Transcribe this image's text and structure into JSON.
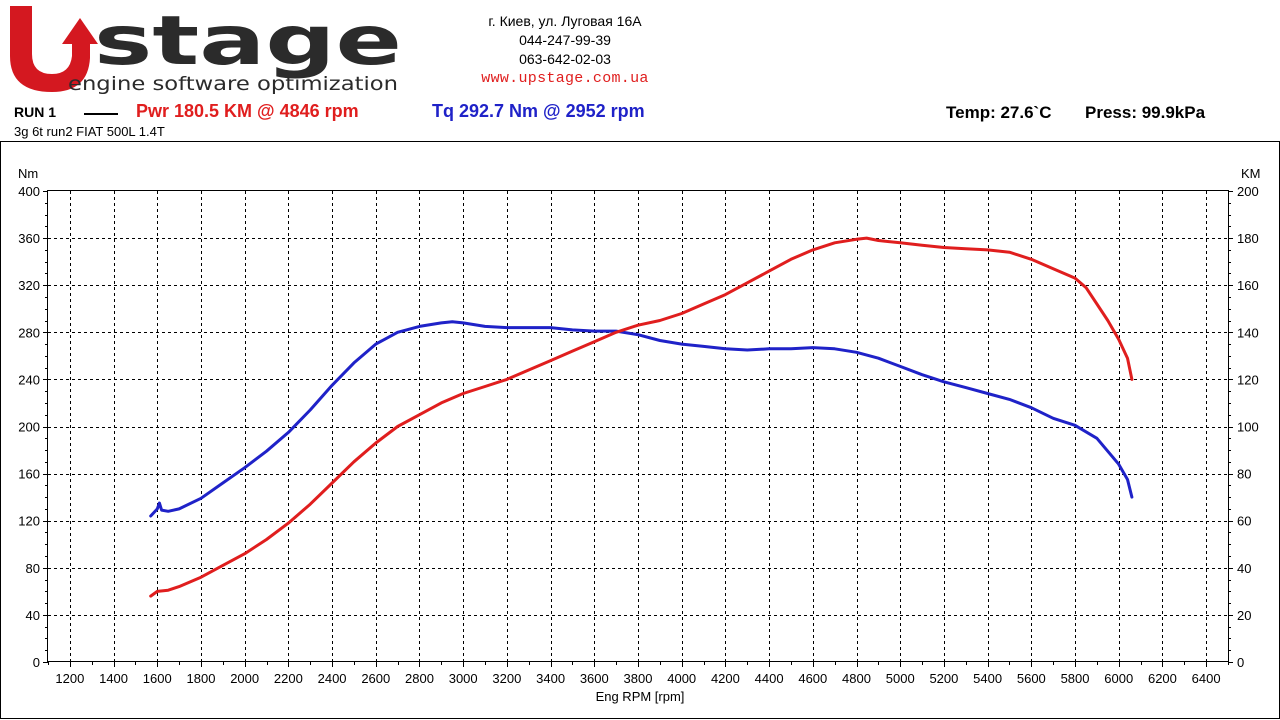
{
  "header": {
    "logo_text": "stage",
    "logo_letter": "U",
    "logo_tagline": "engine software optimization",
    "address": "г. Киев, ул. Луговая 16А",
    "phone1": "044-247-99-39",
    "phone2": "063-642-02-03",
    "website": "www.upstage.com.ua"
  },
  "run": {
    "label": "RUN 1",
    "power_summary": "Pwr  180.5 KM @ 4846 rpm",
    "torque_summary": "Tq 292.7 Nm @ 2952 rpm",
    "temp": "Temp: 27.6`C",
    "press": "Press: 99.9kPa",
    "description": "3g 6t run2 FIAT 500L 1.4T"
  },
  "colors": {
    "power": "#e01e1e",
    "torque": "#1f22c8",
    "logo_red": "#d41820",
    "logo_dark": "#2b2b2b"
  },
  "chart_data": {
    "type": "line",
    "xlabel": "Eng RPM [rpm]",
    "ylabel_left": "Nm",
    "ylabel_right": "KM",
    "xlim": [
      1100,
      6500
    ],
    "ylim_left": [
      0,
      400
    ],
    "ylim_right": [
      0,
      200
    ],
    "x_ticks": [
      1200,
      1400,
      1600,
      1800,
      2000,
      2200,
      2400,
      2600,
      2800,
      3000,
      3200,
      3400,
      3600,
      3800,
      4000,
      4200,
      4400,
      4600,
      4800,
      5000,
      5200,
      5400,
      5600,
      5800,
      6000,
      6200,
      6400
    ],
    "y_ticks_left": [
      0,
      40,
      80,
      120,
      160,
      200,
      240,
      280,
      320,
      360,
      400
    ],
    "y_ticks_right": [
      0,
      20,
      40,
      60,
      80,
      100,
      120,
      140,
      160,
      180,
      200
    ],
    "grid": true,
    "series": [
      {
        "name": "Tq",
        "axis": "left",
        "points": [
          [
            1570,
            124
          ],
          [
            1600,
            130
          ],
          [
            1610,
            135
          ],
          [
            1620,
            129
          ],
          [
            1650,
            128
          ],
          [
            1700,
            130
          ],
          [
            1800,
            139
          ],
          [
            1900,
            152
          ],
          [
            2000,
            165
          ],
          [
            2100,
            179
          ],
          [
            2200,
            195
          ],
          [
            2300,
            214
          ],
          [
            2400,
            235
          ],
          [
            2500,
            254
          ],
          [
            2600,
            270
          ],
          [
            2700,
            280
          ],
          [
            2800,
            285
          ],
          [
            2900,
            288
          ],
          [
            2950,
            289
          ],
          [
            3000,
            288
          ],
          [
            3100,
            285
          ],
          [
            3200,
            284
          ],
          [
            3300,
            284
          ],
          [
            3400,
            284
          ],
          [
            3500,
            282
          ],
          [
            3600,
            281
          ],
          [
            3700,
            281
          ],
          [
            3800,
            278
          ],
          [
            3900,
            273
          ],
          [
            4000,
            270
          ],
          [
            4100,
            268
          ],
          [
            4200,
            266
          ],
          [
            4300,
            265
          ],
          [
            4400,
            266
          ],
          [
            4500,
            266
          ],
          [
            4600,
            267
          ],
          [
            4700,
            266
          ],
          [
            4800,
            263
          ],
          [
            4900,
            258
          ],
          [
            5000,
            251
          ],
          [
            5100,
            244
          ],
          [
            5200,
            238
          ],
          [
            5300,
            233
          ],
          [
            5400,
            228
          ],
          [
            5500,
            223
          ],
          [
            5600,
            216
          ],
          [
            5700,
            207
          ],
          [
            5800,
            201
          ],
          [
            5900,
            190
          ],
          [
            6000,
            168
          ],
          [
            6040,
            155
          ],
          [
            6060,
            140
          ]
        ]
      },
      {
        "name": "Pwr",
        "axis": "right",
        "points": [
          [
            1570,
            28
          ],
          [
            1600,
            30
          ],
          [
            1650,
            30.5
          ],
          [
            1700,
            32
          ],
          [
            1800,
            36
          ],
          [
            1900,
            41
          ],
          [
            2000,
            46
          ],
          [
            2100,
            52
          ],
          [
            2200,
            59
          ],
          [
            2300,
            67
          ],
          [
            2400,
            76
          ],
          [
            2500,
            85
          ],
          [
            2600,
            93
          ],
          [
            2700,
            100
          ],
          [
            2800,
            105
          ],
          [
            2900,
            110
          ],
          [
            3000,
            114
          ],
          [
            3100,
            117
          ],
          [
            3200,
            120
          ],
          [
            3300,
            124
          ],
          [
            3400,
            128
          ],
          [
            3500,
            132
          ],
          [
            3600,
            136
          ],
          [
            3700,
            140
          ],
          [
            3800,
            143
          ],
          [
            3900,
            145
          ],
          [
            4000,
            148
          ],
          [
            4100,
            152
          ],
          [
            4200,
            156
          ],
          [
            4300,
            161
          ],
          [
            4400,
            166
          ],
          [
            4500,
            171
          ],
          [
            4600,
            175
          ],
          [
            4700,
            178
          ],
          [
            4800,
            179.5
          ],
          [
            4846,
            180
          ],
          [
            4900,
            179
          ],
          [
            5000,
            178
          ],
          [
            5100,
            177
          ],
          [
            5200,
            176
          ],
          [
            5300,
            175.5
          ],
          [
            5400,
            175
          ],
          [
            5500,
            174
          ],
          [
            5600,
            171
          ],
          [
            5700,
            167
          ],
          [
            5800,
            163
          ],
          [
            5850,
            159
          ],
          [
            5900,
            152
          ],
          [
            5950,
            145
          ],
          [
            6000,
            137
          ],
          [
            6040,
            129
          ],
          [
            6060,
            120
          ]
        ]
      }
    ]
  }
}
